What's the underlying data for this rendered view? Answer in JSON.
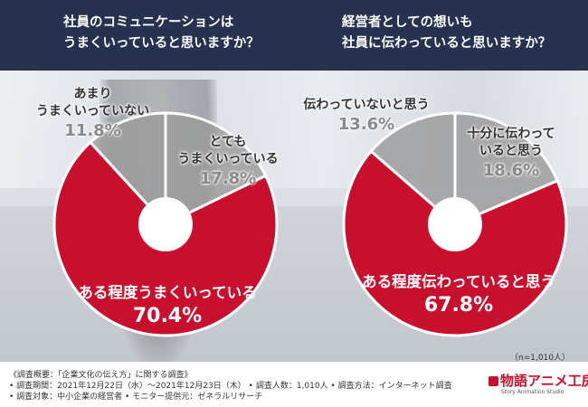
{
  "questions": {
    "q1": [
      "社員のコミュニケーションは",
      "うまくいっていると思いますか？"
    ],
    "q2": [
      "経営者としての想いも",
      "社員に伝わっていると思いますか？"
    ]
  },
  "colors": {
    "header": "#26324f",
    "red": "#c8102e",
    "gray": "#9b9b9b",
    "light_gray": "#bdbdbd",
    "separator": "#ffffff"
  },
  "chart_data": [
    {
      "type": "pie",
      "title": "社員のコミュニケーションはうまくいっていると思いますか？",
      "slices": [
        {
          "label": "とてもうまくいっている",
          "value": 17.8,
          "value_text": "17.8%",
          "color": "#9b9b9b"
        },
        {
          "label": "ある程度うまくいっている",
          "value": 70.4,
          "value_text": "70.4%",
          "color": "#c8102e"
        },
        {
          "label": "あまりうまくいっていない",
          "value": 11.8,
          "value_text": "11.8%",
          "color": "#9b9b9b"
        }
      ]
    },
    {
      "type": "pie",
      "title": "経営者としての想いも社員に伝わっていると思いますか？",
      "slices": [
        {
          "label": "十分に伝わっていると思う",
          "value": 18.6,
          "value_text": "18.6%",
          "color": "#9b9b9b"
        },
        {
          "label": "ある程度伝わっていると思う",
          "value": 67.8,
          "value_text": "67.8%",
          "color": "#c8102e"
        },
        {
          "label": "伝わっていないと思う",
          "value": 13.6,
          "value_text": "13.6%",
          "color": "#9b9b9b"
        }
      ]
    }
  ],
  "labels": {
    "c1": {
      "top": {
        "lines": [
          "とても",
          "うまくいっている"
        ],
        "value": "17.8%"
      },
      "main": {
        "lines": [
          "ある程度うまくいっている"
        ],
        "value": "70.4%"
      },
      "left": {
        "lines": [
          "あまり",
          "うまくいっていない"
        ],
        "value": "11.8%"
      }
    },
    "c2": {
      "top": {
        "lines": [
          "十分に伝わって",
          "いると思う"
        ],
        "value": "18.6%"
      },
      "main": {
        "lines": [
          "ある程度伝わっていると思う"
        ],
        "value": "67.8%"
      },
      "left": {
        "lines": [
          "伝わっていないと思う"
        ],
        "value": "13.6%"
      }
    }
  },
  "note_n": "（n=1,010人）",
  "footer": {
    "line1": "《調査概要：「企業文化の伝え方」に関する調査》",
    "line2": "• 調査期間：2021年12月22日（水）〜2021年12月23日（木）  • 調査人数：1,010人  • 調査方法：インターネット調査",
    "line3": "• 調査対象：中小企業の経営者  • モニター提供元：ゼネラルリサーチ"
  },
  "logo": {
    "name": "物語アニメ工房",
    "sub": "Story Animation Studio"
  }
}
